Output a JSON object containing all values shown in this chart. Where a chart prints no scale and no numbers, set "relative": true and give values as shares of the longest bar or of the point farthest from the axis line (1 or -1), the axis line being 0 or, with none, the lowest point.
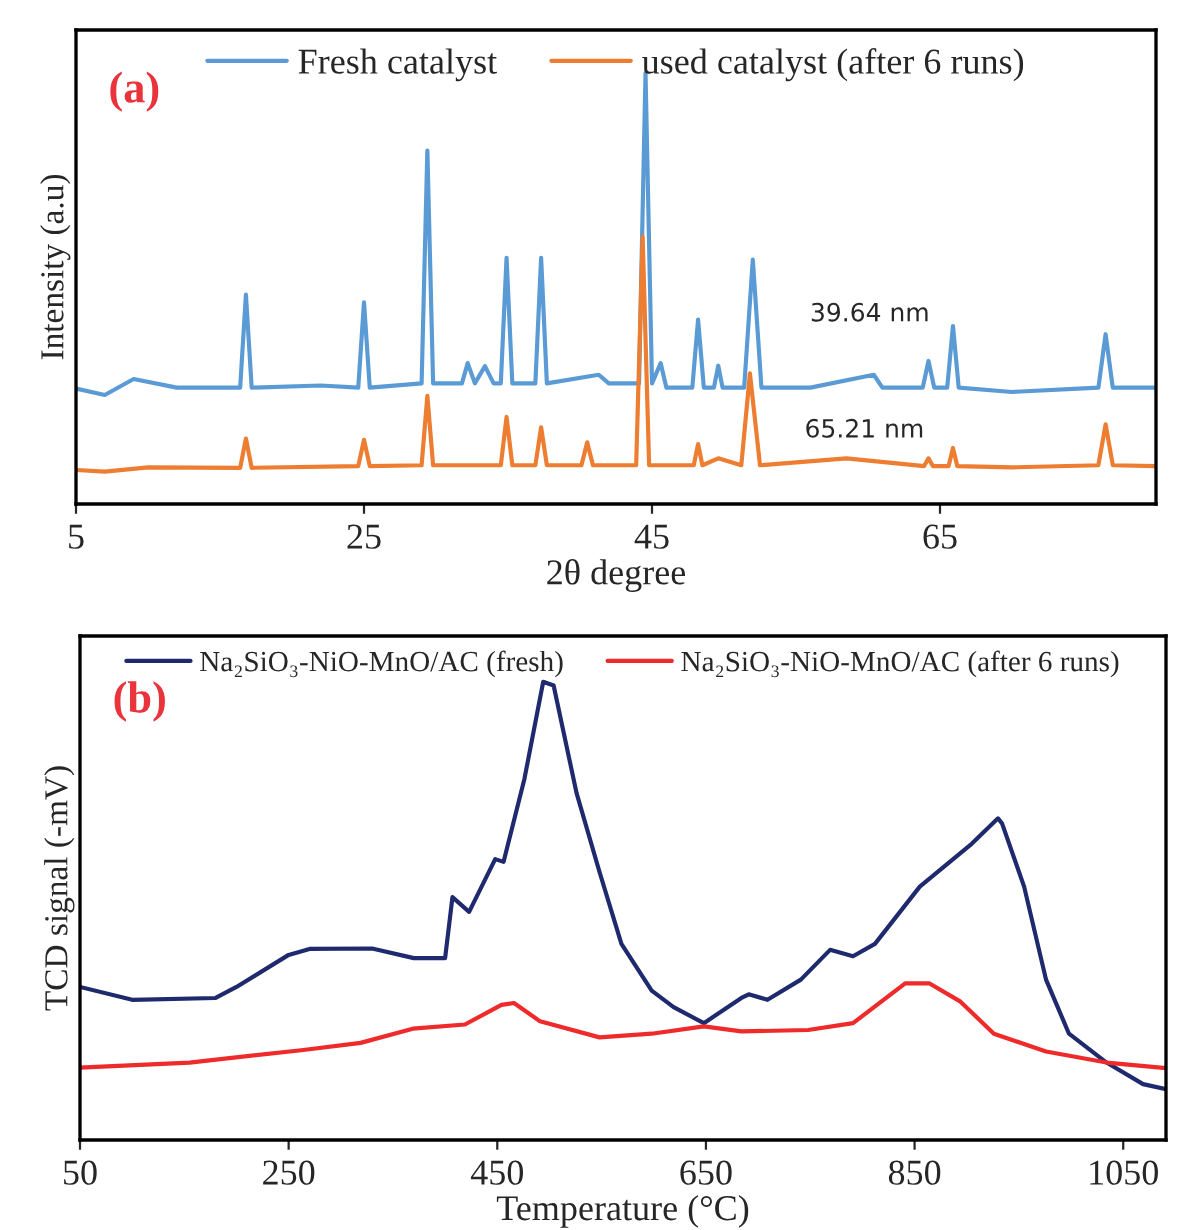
{
  "chart_data": [
    {
      "type": "line",
      "xlabel": "2θ degree",
      "ylabel": "Intensity (a.u)",
      "relative": true,
      "xlim": [
        5,
        80
      ],
      "xticks": [
        5,
        25,
        45,
        65
      ],
      "tick_labels": "x",
      "legend": "top",
      "grid": false,
      "annotations": [
        "(a)",
        "39.64 nm",
        "65.21 nm"
      ],
      "series": [
        {
          "name": "Fresh catalyst",
          "color": "#5b9bd5",
          "x": [
            5,
            7,
            9,
            12,
            16.4,
            16.8,
            17.2,
            22,
            24.6,
            25.0,
            25.4,
            29.0,
            29.4,
            29.8,
            31.8,
            32.2,
            32.7,
            33.4,
            34.0,
            34.5,
            34.9,
            35.3,
            36.9,
            37.3,
            37.7,
            41.3,
            42,
            44.1,
            44.55,
            45.0,
            45.6,
            46,
            47.8,
            48.2,
            48.6,
            49.3,
            49.6,
            49.9,
            51.4,
            52.0,
            52.6,
            56,
            60.4,
            61,
            63.8,
            64.2,
            64.6,
            65.5,
            65.9,
            66.3,
            70,
            76.0,
            76.5,
            77.0,
            80
          ],
          "values": [
            0.268,
            0.253,
            0.29,
            0.27,
            0.27,
            0.486,
            0.27,
            0.275,
            0.27,
            0.468,
            0.27,
            0.28,
            0.82,
            0.28,
            0.28,
            0.327,
            0.28,
            0.32,
            0.28,
            0.28,
            0.571,
            0.28,
            0.28,
            0.571,
            0.28,
            0.3,
            0.28,
            0.28,
            1.0,
            0.28,
            0.327,
            0.27,
            0.27,
            0.428,
            0.27,
            0.27,
            0.321,
            0.27,
            0.27,
            0.567,
            0.27,
            0.27,
            0.3,
            0.27,
            0.27,
            0.332,
            0.27,
            0.27,
            0.413,
            0.27,
            0.26,
            0.27,
            0.394,
            0.27,
            0.27
          ]
        },
        {
          "name": "used catalyst (after 6 runs)",
          "color": "#ed7d31",
          "x": [
            5,
            7,
            10,
            16.4,
            16.8,
            17.2,
            24.6,
            25.0,
            25.4,
            29.0,
            29.4,
            29.8,
            34.5,
            34.9,
            35.3,
            36.9,
            37.3,
            37.7,
            40.1,
            40.5,
            40.9,
            43.9,
            44.35,
            44.8,
            47.9,
            48.2,
            48.5,
            49.6,
            51.2,
            51.8,
            52.5,
            58.5,
            63.9,
            64.2,
            64.5,
            65.6,
            65.9,
            66.2,
            70,
            76.0,
            76.5,
            77.0,
            80
          ],
          "values": [
            0.079,
            0.075,
            0.085,
            0.084,
            0.152,
            0.084,
            0.088,
            0.149,
            0.088,
            0.09,
            0.251,
            0.09,
            0.09,
            0.202,
            0.09,
            0.09,
            0.178,
            0.09,
            0.09,
            0.143,
            0.09,
            0.09,
            0.62,
            0.09,
            0.09,
            0.139,
            0.09,
            0.106,
            0.09,
            0.303,
            0.09,
            0.106,
            0.088,
            0.106,
            0.088,
            0.088,
            0.13,
            0.088,
            0.085,
            0.09,
            0.185,
            0.09,
            0.088
          ]
        }
      ]
    },
    {
      "type": "line",
      "xlabel": "Temperature (°C)",
      "ylabel": "TCD signal (-mV)",
      "relative": true,
      "xlim": [
        50,
        1091
      ],
      "xticks": [
        50,
        250,
        450,
        650,
        850,
        1050
      ],
      "tick_labels": "x",
      "legend": "top",
      "grid": false,
      "annotations": [
        "(b)"
      ],
      "series": [
        {
          "name": "Na₂SiO₃-NiO-MnO/AC (fresh)",
          "color": "#1f2a6e",
          "x": [
            50,
            100,
            180,
            200,
            250,
            270,
            330,
            370,
            400,
            407,
            423,
            448,
            456,
            476,
            494,
            504,
            526,
            548,
            569,
            598,
            619,
            648,
            684,
            691,
            709,
            741,
            769,
            791,
            812,
            855,
            905,
            930,
            934,
            955,
            976,
            998,
            1034,
            1069,
            1091
          ],
          "values": [
            0.334,
            0.306,
            0.31,
            0.334,
            0.404,
            0.417,
            0.418,
            0.397,
            0.397,
            0.53,
            0.498,
            0.613,
            0.607,
            0.788,
            1.0,
            0.992,
            0.757,
            0.585,
            0.428,
            0.326,
            0.29,
            0.255,
            0.31,
            0.318,
            0.306,
            0.35,
            0.415,
            0.401,
            0.428,
            0.553,
            0.647,
            0.702,
            0.69,
            0.553,
            0.35,
            0.232,
            0.169,
            0.122,
            0.111
          ]
        },
        {
          "name": "Na₂SiO₃-NiO-MnO/AC (after 6 runs)",
          "color": "#ee2a2a",
          "x": [
            50,
            155,
            262,
            319,
            369,
            419,
            454,
            466,
            491,
            548,
            598,
            648,
            684,
            748,
            791,
            841,
            864,
            894,
            926,
            976,
            1034,
            1091
          ],
          "values": [
            0.158,
            0.169,
            0.196,
            0.212,
            0.243,
            0.252,
            0.295,
            0.299,
            0.259,
            0.224,
            0.232,
            0.248,
            0.237,
            0.24,
            0.255,
            0.342,
            0.342,
            0.302,
            0.232,
            0.193,
            0.169,
            0.157
          ]
        }
      ]
    }
  ]
}
